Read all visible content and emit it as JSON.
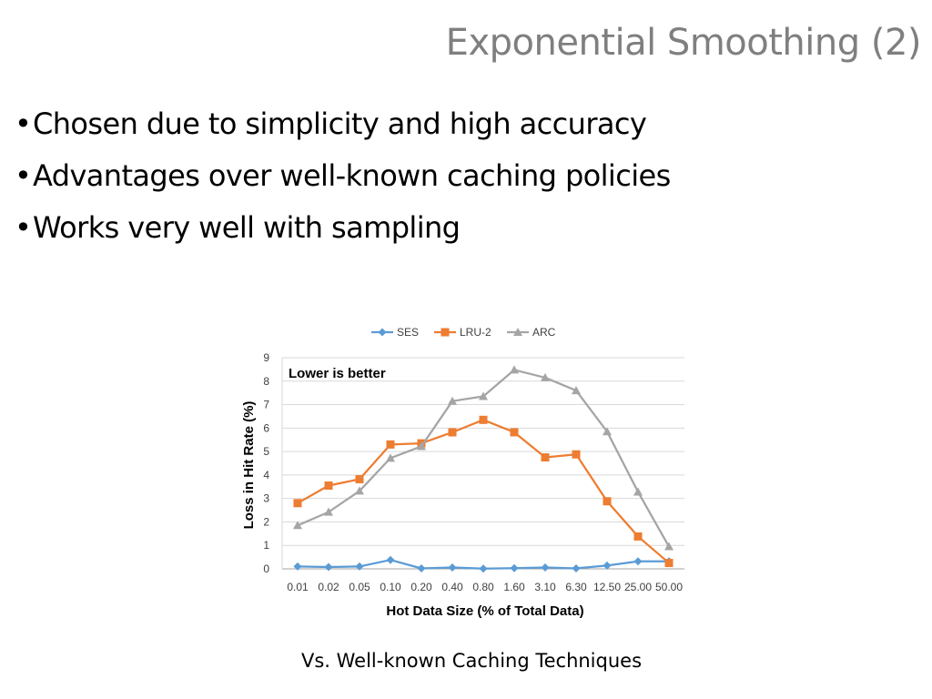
{
  "slide": {
    "title": "Exponential Smoothing (2)",
    "bullets": [
      "Chosen due to simplicity and high accuracy",
      "Advantages over well-known caching policies",
      "Works very well with sampling"
    ],
    "bullet_glyph": "•",
    "caption": "Vs. Well-known Caching Techniques"
  },
  "chart_data": {
    "type": "line",
    "categories": [
      "0.01",
      "0.02",
      "0.05",
      "0.10",
      "0.20",
      "0.40",
      "0.80",
      "1.60",
      "3.10",
      "6.30",
      "12.50",
      "25.00",
      "50.00"
    ],
    "series": [
      {
        "name": "SES",
        "color": "#5b9bd5",
        "marker": "diamond",
        "values": [
          0.1,
          0.08,
          0.1,
          0.38,
          0.02,
          0.06,
          0.01,
          0.03,
          0.06,
          0.02,
          0.14,
          0.32,
          0.32
        ]
      },
      {
        "name": "LRU-2",
        "color": "#ed7d31",
        "marker": "square",
        "values": [
          2.8,
          3.55,
          3.82,
          5.3,
          5.35,
          5.82,
          6.35,
          5.82,
          4.75,
          4.88,
          2.88,
          1.38,
          0.25
        ]
      },
      {
        "name": "ARC",
        "color": "#a5a5a5",
        "marker": "triangle",
        "values": [
          1.85,
          2.42,
          3.32,
          4.72,
          5.22,
          7.15,
          7.35,
          8.48,
          8.15,
          7.6,
          5.85,
          3.28,
          0.95
        ]
      }
    ],
    "xlabel": "Hot Data Size (% of Total Data)",
    "ylabel": "Loss in Hit Rate (%)",
    "ylim": [
      0,
      9
    ],
    "yticks": [
      0,
      1,
      2,
      3,
      4,
      5,
      6,
      7,
      8,
      9
    ],
    "grid": true,
    "legend_position": "top",
    "annotation": "Lower is better"
  }
}
